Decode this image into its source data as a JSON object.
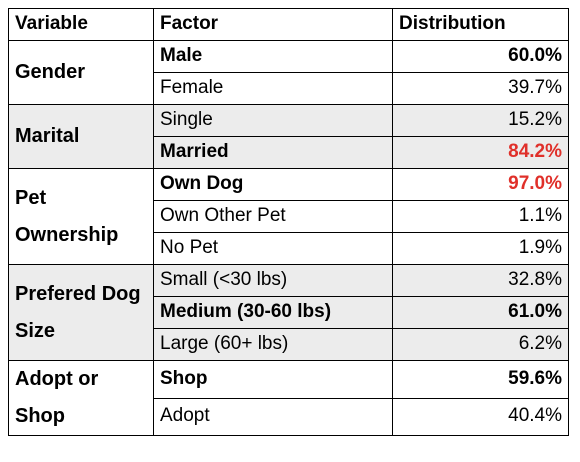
{
  "headers": {
    "variable": "Variable",
    "factor": "Factor",
    "distribution": "Distribution"
  },
  "groups": [
    {
      "variable": "Gender",
      "rows": [
        {
          "factor": "Male",
          "value": "60.0%",
          "bold": true,
          "highlight": false
        },
        {
          "factor": "Female",
          "value": "39.7%",
          "bold": false,
          "highlight": false
        }
      ]
    },
    {
      "variable": "Marital",
      "rows": [
        {
          "factor": "Single",
          "value": "15.2%",
          "bold": false,
          "highlight": false
        },
        {
          "factor": "Married",
          "value": "84.2%",
          "bold": true,
          "highlight": true
        }
      ]
    },
    {
      "variable": "Pet Ownership",
      "rows": [
        {
          "factor": "Own Dog",
          "value": "97.0%",
          "bold": true,
          "highlight": true
        },
        {
          "factor": "Own Other Pet",
          "value": "1.1%",
          "bold": false,
          "highlight": false
        },
        {
          "factor": "No Pet",
          "value": "1.9%",
          "bold": false,
          "highlight": false
        }
      ]
    },
    {
      "variable": "Prefered Dog Size",
      "rows": [
        {
          "factor": "Small (<30 lbs)",
          "value": "32.8%",
          "bold": false,
          "highlight": false
        },
        {
          "factor": "Medium (30-60 lbs)",
          "value": "61.0%",
          "bold": true,
          "highlight": false
        },
        {
          "factor": "Large (60+ lbs)",
          "value": "6.2%",
          "bold": false,
          "highlight": false
        }
      ]
    },
    {
      "variable": "Adopt or Shop",
      "rows": [
        {
          "factor": "Shop",
          "value": "59.6%",
          "bold": true,
          "highlight": false
        },
        {
          "factor": "Adopt",
          "value": "40.4%",
          "bold": false,
          "highlight": false
        }
      ]
    }
  ],
  "colors": {
    "highlight": "#e0302a",
    "shade": "#ececec"
  }
}
